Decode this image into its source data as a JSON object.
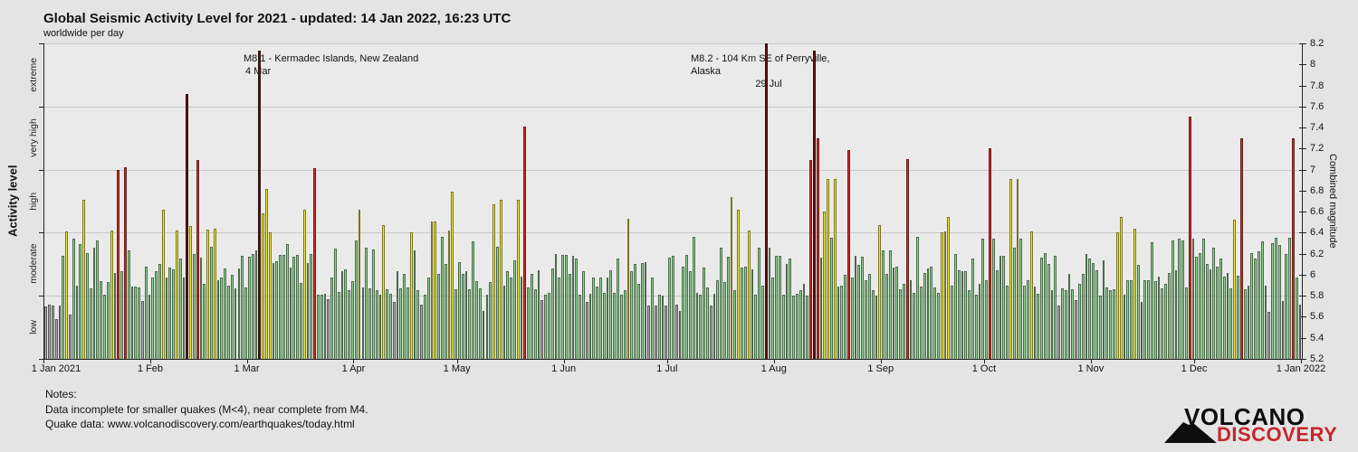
{
  "title": "Global Seismic Activity Level for 2021 - updated: 14 Jan 2022, 16:23 UTC",
  "subtitle": "worldwide per day",
  "y_left": {
    "axis_label": "Activity level",
    "categories": [
      "low",
      "moderate",
      "high",
      "very high",
      "extreme"
    ]
  },
  "y_right": {
    "axis_label": "Combined magnitude",
    "min": 5.2,
    "max": 8.2,
    "tick_step": 0.2
  },
  "annotations": [
    {
      "text": "M8.1 - Kermadec Islands, New Zealand",
      "date": "4 Mar"
    },
    {
      "text": "M8.2 - 104 Km SE of Perryville, Alaska",
      "date": "29 Jul"
    }
  ],
  "notes": {
    "heading": "Notes:",
    "line1": "Data incomplete for smaller quakes (M<4), near complete from M4.",
    "line2": "Quake data: www.volcanodiscovery.com/earthquakes/today.html"
  },
  "logo": {
    "top": "VOLCANO",
    "bottom": "DISCOVERY",
    "red": "#c9252c"
  },
  "chart_data": {
    "type": "bar",
    "title": "Global Seismic Activity Level for 2021 - updated: 14 Jan 2022, 16:23 UTC",
    "subtitle": "worldwide per day",
    "ylabel_left": "Activity level",
    "ylabel_right": "Combined magnitude",
    "ylim": [
      5.2,
      8.2
    ],
    "grid": true,
    "levels": [
      {
        "name": "low",
        "min": 5.2,
        "max": 5.8,
        "color": "#ababab"
      },
      {
        "name": "moderate",
        "min": 5.8,
        "max": 6.4,
        "color": "#8fd48f"
      },
      {
        "name": "high",
        "min": 6.4,
        "max": 7.0,
        "color": "#f2ee2e"
      },
      {
        "name": "very high",
        "min": 7.0,
        "max": 7.6,
        "color": "#d42a20"
      },
      {
        "name": "extreme",
        "min": 7.6,
        "max": 8.2,
        "color": "#5e1010"
      }
    ],
    "x_tick_labels": [
      "1 Jan 2021",
      "1 Feb",
      "1 Mar",
      "1 Apr",
      "1 May",
      "1 Jun",
      "1 Jul",
      "1 Aug",
      "1 Sep",
      "1 Oct",
      "1 Nov",
      "1 Dec",
      "1 Jan 2022"
    ],
    "month_days": [
      31,
      28,
      31,
      30,
      31,
      30,
      31,
      31,
      30,
      31,
      30,
      31
    ],
    "values": [
      5.7,
      5.72,
      5.71,
      5.58,
      5.71,
      6.18,
      6.41,
      5.62,
      6.34,
      5.9,
      6.29,
      6.71,
      6.21,
      5.87,
      6.26,
      6.33,
      5.94,
      5.81,
      5.93,
      6.42,
      6.02,
      7.0,
      6.03,
      7.02,
      6.23,
      5.89,
      5.89,
      5.88,
      5.75,
      6.08,
      5.81,
      5.97,
      6.03,
      6.1,
      6.62,
      5.97,
      6.07,
      6.05,
      6.42,
      6.15,
      5.97,
      7.72,
      6.46,
      6.2,
      7.09,
      6.16,
      5.91,
      6.43,
      6.27,
      6.44,
      5.95,
      5.97,
      6.06,
      5.9,
      6.0,
      5.87,
      6.06,
      6.18,
      5.88,
      6.17,
      6.2,
      6.23,
      8.13,
      6.58,
      6.82,
      6.4,
      6.11,
      6.13,
      6.19,
      6.19,
      6.29,
      6.07,
      6.17,
      6.19,
      5.92,
      6.62,
      6.11,
      6.2,
      7.01,
      5.81,
      5.81,
      5.82,
      5.77,
      5.97,
      6.25,
      5.84,
      6.03,
      6.05,
      5.85,
      5.94,
      6.33,
      6.62,
      5.88,
      6.26,
      5.87,
      6.24,
      5.85,
      5.81,
      6.47,
      5.86,
      5.82,
      5.74,
      6.03,
      5.87,
      6.01,
      5.88,
      6.4,
      6.23,
      5.85,
      5.72,
      5.81,
      5.97,
      6.51,
      6.51,
      6.01,
      6.36,
      6.1,
      6.42,
      6.79,
      5.86,
      6.12,
      6.01,
      6.03,
      5.86,
      6.32,
      5.94,
      5.87,
      5.66,
      5.81,
      5.93,
      6.67,
      6.27,
      6.71,
      5.9,
      6.03,
      5.97,
      6.14,
      6.71,
      5.98,
      7.41,
      5.88,
      6.01,
      5.86,
      6.04,
      5.76,
      5.81,
      5.83,
      6.06,
      6.2,
      5.97,
      6.19,
      6.19,
      6.01,
      6.18,
      6.15,
      5.81,
      6.03,
      5.74,
      5.82,
      5.97,
      5.89,
      5.97,
      5.83,
      5.97,
      6.04,
      5.83,
      6.15,
      5.81,
      5.85,
      6.53,
      6.03,
      6.1,
      5.91,
      6.11,
      6.12,
      5.71,
      5.97,
      5.71,
      5.81,
      5.8,
      5.71,
      6.16,
      6.18,
      5.72,
      5.66,
      6.08,
      6.19,
      6.03,
      6.36,
      5.83,
      5.81,
      6.07,
      5.88,
      5.71,
      5.82,
      5.95,
      6.26,
      5.93,
      6.17,
      6.74,
      5.85,
      6.62,
      6.07,
      6.08,
      6.42,
      6.05,
      5.81,
      6.26,
      5.9,
      8.2,
      6.26,
      5.97,
      6.18,
      6.18,
      5.81,
      6.1,
      6.15,
      5.8,
      5.82,
      5.85,
      5.91,
      5.8,
      7.09,
      8.13,
      7.3,
      6.16,
      6.6,
      6.91,
      6.35,
      6.91,
      5.89,
      5.9,
      6.0,
      7.19,
      5.97,
      6.18,
      6.09,
      6.17,
      5.95,
      6.01,
      5.85,
      5.8,
      6.47,
      6.23,
      6.01,
      6.23,
      6.07,
      6.08,
      5.86,
      5.91,
      7.1,
      5.95,
      5.83,
      6.36,
      5.89,
      6.02,
      6.06,
      6.08,
      5.88,
      5.83,
      6.4,
      6.41,
      6.55,
      5.9,
      6.2,
      6.04,
      6.03,
      6.03,
      5.85,
      6.15,
      5.81,
      5.91,
      6.34,
      5.95,
      7.2,
      6.34,
      6.04,
      6.18,
      6.18,
      5.9,
      6.91,
      6.26,
      6.91,
      6.34,
      5.9,
      5.95,
      6.41,
      5.89,
      5.82,
      6.16,
      6.21,
      6.1,
      5.85,
      6.18,
      5.71,
      5.87,
      5.85,
      6.01,
      5.86,
      5.76,
      5.91,
      6.01,
      6.2,
      6.15,
      6.11,
      6.04,
      5.8,
      6.14,
      5.88,
      5.85,
      5.86,
      6.4,
      6.55,
      5.81,
      5.95,
      5.95,
      6.44,
      6.09,
      5.74,
      5.95,
      5.95,
      6.31,
      5.94,
      5.98,
      5.87,
      5.91,
      6.02,
      6.33,
      6.04,
      6.34,
      6.33,
      5.88,
      7.5,
      6.34,
      6.17,
      6.21,
      6.34,
      6.1,
      6.05,
      6.26,
      6.08,
      6.15,
      5.98,
      6.02,
      5.87,
      6.52,
      5.99,
      7.3,
      5.86,
      5.9,
      6.21,
      6.15,
      6.22,
      6.32,
      5.9,
      5.65,
      6.3,
      6.35,
      6.28,
      5.75,
      6.2,
      6.35,
      7.3,
      5.97,
      5.72
    ]
  }
}
